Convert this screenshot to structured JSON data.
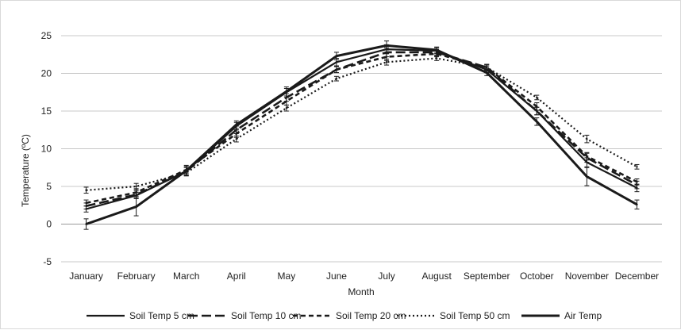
{
  "chart_data": {
    "type": "line",
    "title": "",
    "xlabel": "Month",
    "ylabel": "Temperature (ºC)",
    "categories": [
      "January",
      "February",
      "March",
      "April",
      "May",
      "June",
      "July",
      "August",
      "September",
      "October",
      "November",
      "December"
    ],
    "y_ticks": [
      "25",
      "20",
      "15",
      "10",
      "5",
      "0",
      "-5"
    ],
    "ylim": [
      -5,
      25
    ],
    "grid": true,
    "legend_position": "bottom",
    "series": [
      {
        "name": "Soil Temp 5 cm",
        "style": "solid-thin",
        "color": "#1a1a1a",
        "values": [
          2.0,
          3.8,
          7.0,
          13.0,
          17.5,
          21.5,
          23.2,
          23.0,
          20.5,
          15.0,
          8.2,
          4.8
        ],
        "errors": [
          0.4,
          0.4,
          0.5,
          0.5,
          0.5,
          0.5,
          0.6,
          0.4,
          0.4,
          0.5,
          0.6,
          0.5
        ]
      },
      {
        "name": "Soil Temp 10 cm",
        "style": "long-dash",
        "color": "#1a1a1a",
        "values": [
          2.4,
          3.9,
          7.0,
          12.5,
          16.8,
          20.5,
          22.8,
          22.8,
          20.8,
          15.0,
          8.8,
          5.2
        ],
        "errors": [
          0.4,
          0.5,
          0.5,
          0.5,
          0.5,
          0.4,
          0.6,
          0.4,
          0.4,
          0.5,
          0.6,
          0.5
        ]
      },
      {
        "name": "Soil Temp 20 cm",
        "style": "dash",
        "color": "#1a1a1a",
        "values": [
          2.8,
          4.2,
          7.2,
          12.0,
          16.3,
          20.5,
          22.2,
          22.6,
          20.8,
          15.6,
          9.0,
          5.6
        ],
        "errors": [
          0.4,
          0.5,
          0.5,
          0.5,
          0.5,
          0.4,
          0.5,
          0.4,
          0.4,
          0.5,
          0.5,
          0.4
        ]
      },
      {
        "name": "Soil Temp 50 cm",
        "style": "dotted",
        "color": "#1a1a1a",
        "values": [
          4.5,
          5.0,
          6.8,
          11.3,
          15.4,
          19.3,
          21.5,
          22.0,
          20.8,
          16.8,
          11.3,
          7.6
        ],
        "errors": [
          0.4,
          0.4,
          0.4,
          0.4,
          0.4,
          0.3,
          0.4,
          0.3,
          0.3,
          0.3,
          0.5,
          0.3
        ]
      },
      {
        "name": "Air Temp",
        "style": "solid-thick",
        "color": "#1a1a1a",
        "values": [
          0.0,
          2.3,
          7.1,
          13.2,
          17.6,
          22.3,
          23.7,
          23.1,
          20.1,
          13.6,
          6.3,
          2.6
        ],
        "errors": [
          0.7,
          1.2,
          0.7,
          0.5,
          0.6,
          0.5,
          0.6,
          0.4,
          0.4,
          0.5,
          1.2,
          0.6
        ]
      }
    ]
  },
  "colors": {
    "grid": "#c8c8c8",
    "axis": "#9a9a9a",
    "line": "#1a1a1a"
  }
}
